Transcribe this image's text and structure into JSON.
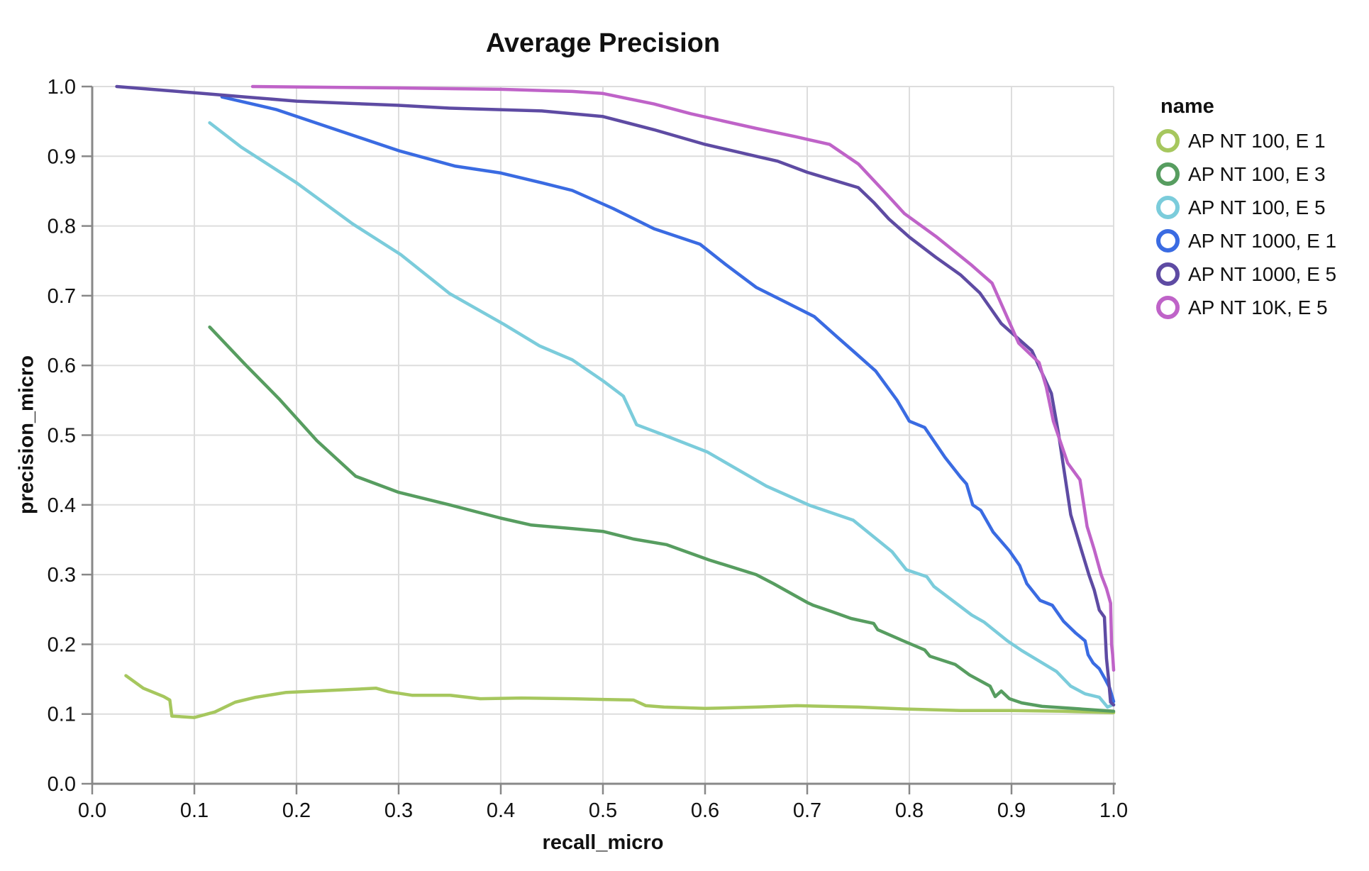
{
  "page": {
    "background": "#ffffff"
  },
  "chart_data": {
    "type": "line",
    "title": "Average Precision",
    "xlabel": "recall_micro",
    "ylabel": "precision_micro",
    "legend_title": "name",
    "legend_position": "right",
    "grid": true,
    "xlim": [
      0,
      1
    ],
    "ylim": [
      0,
      1
    ],
    "x_ticks": [
      "0.0",
      "0.1",
      "0.2",
      "0.3",
      "0.4",
      "0.5",
      "0.6",
      "0.7",
      "0.8",
      "0.9",
      "1.0"
    ],
    "y_ticks": [
      "0.0",
      "0.1",
      "0.2",
      "0.3",
      "0.4",
      "0.5",
      "0.6",
      "0.7",
      "0.8",
      "0.9",
      "1.0"
    ],
    "colors": {
      "grid": "#dddddd",
      "domain": "#888888",
      "text": "#111111"
    },
    "series": [
      {
        "name": "AP NT 100, E 1",
        "color": "#a6c75e",
        "points": [
          [
            0.033,
            0.155
          ],
          [
            0.05,
            0.137
          ],
          [
            0.07,
            0.125
          ],
          [
            0.076,
            0.12
          ],
          [
            0.078,
            0.097
          ],
          [
            0.1,
            0.095
          ],
          [
            0.12,
            0.103
          ],
          [
            0.14,
            0.117
          ],
          [
            0.16,
            0.124
          ],
          [
            0.19,
            0.131
          ],
          [
            0.22,
            0.133
          ],
          [
            0.25,
            0.135
          ],
          [
            0.278,
            0.137
          ],
          [
            0.29,
            0.132
          ],
          [
            0.313,
            0.127
          ],
          [
            0.35,
            0.127
          ],
          [
            0.38,
            0.122
          ],
          [
            0.42,
            0.123
          ],
          [
            0.47,
            0.122
          ],
          [
            0.5,
            0.121
          ],
          [
            0.53,
            0.12
          ],
          [
            0.542,
            0.112
          ],
          [
            0.56,
            0.11
          ],
          [
            0.6,
            0.108
          ],
          [
            0.65,
            0.11
          ],
          [
            0.69,
            0.112
          ],
          [
            0.75,
            0.11
          ],
          [
            0.8,
            0.107
          ],
          [
            0.85,
            0.105
          ],
          [
            0.9,
            0.105
          ],
          [
            0.95,
            0.104
          ],
          [
            1.0,
            0.102
          ]
        ]
      },
      {
        "name": "AP NT 100, E 3",
        "color": "#579d60",
        "points": [
          [
            0.115,
            0.655
          ],
          [
            0.15,
            0.601
          ],
          [
            0.183,
            0.552
          ],
          [
            0.22,
            0.492
          ],
          [
            0.258,
            0.441
          ],
          [
            0.3,
            0.418
          ],
          [
            0.35,
            0.4
          ],
          [
            0.4,
            0.381
          ],
          [
            0.43,
            0.371
          ],
          [
            0.47,
            0.366
          ],
          [
            0.5,
            0.362
          ],
          [
            0.53,
            0.351
          ],
          [
            0.562,
            0.343
          ],
          [
            0.604,
            0.321
          ],
          [
            0.65,
            0.3
          ],
          [
            0.667,
            0.287
          ],
          [
            0.7,
            0.26
          ],
          [
            0.706,
            0.256
          ],
          [
            0.724,
            0.247
          ],
          [
            0.743,
            0.237
          ],
          [
            0.765,
            0.23
          ],
          [
            0.769,
            0.221
          ],
          [
            0.794,
            0.205
          ],
          [
            0.815,
            0.192
          ],
          [
            0.82,
            0.183
          ],
          [
            0.845,
            0.171
          ],
          [
            0.859,
            0.156
          ],
          [
            0.879,
            0.14
          ],
          [
            0.884,
            0.125
          ],
          [
            0.89,
            0.133
          ],
          [
            0.898,
            0.122
          ],
          [
            0.91,
            0.116
          ],
          [
            0.93,
            0.111
          ],
          [
            0.96,
            0.108
          ],
          [
            1.0,
            0.104
          ]
        ]
      },
      {
        "name": "AP NT 100, E 5",
        "color": "#7bccdb",
        "points": [
          [
            0.115,
            0.948
          ],
          [
            0.146,
            0.913
          ],
          [
            0.2,
            0.862
          ],
          [
            0.255,
            0.803
          ],
          [
            0.302,
            0.759
          ],
          [
            0.35,
            0.703
          ],
          [
            0.403,
            0.659
          ],
          [
            0.438,
            0.628
          ],
          [
            0.47,
            0.608
          ],
          [
            0.5,
            0.578
          ],
          [
            0.52,
            0.556
          ],
          [
            0.533,
            0.515
          ],
          [
            0.56,
            0.5
          ],
          [
            0.602,
            0.476
          ],
          [
            0.66,
            0.427
          ],
          [
            0.703,
            0.399
          ],
          [
            0.745,
            0.378
          ],
          [
            0.783,
            0.333
          ],
          [
            0.797,
            0.307
          ],
          [
            0.817,
            0.297
          ],
          [
            0.824,
            0.283
          ],
          [
            0.861,
            0.242
          ],
          [
            0.873,
            0.232
          ],
          [
            0.896,
            0.205
          ],
          [
            0.91,
            0.191
          ],
          [
            0.944,
            0.161
          ],
          [
            0.958,
            0.14
          ],
          [
            0.972,
            0.129
          ],
          [
            0.986,
            0.124
          ],
          [
            0.994,
            0.11
          ],
          [
            1.0,
            0.114
          ]
        ]
      },
      {
        "name": "AP NT 1000, E 1",
        "color": "#3a6be2",
        "points": [
          [
            0.127,
            0.985
          ],
          [
            0.18,
            0.967
          ],
          [
            0.235,
            0.94
          ],
          [
            0.3,
            0.908
          ],
          [
            0.355,
            0.886
          ],
          [
            0.4,
            0.876
          ],
          [
            0.44,
            0.862
          ],
          [
            0.47,
            0.851
          ],
          [
            0.51,
            0.825
          ],
          [
            0.55,
            0.796
          ],
          [
            0.595,
            0.774
          ],
          [
            0.62,
            0.745
          ],
          [
            0.65,
            0.712
          ],
          [
            0.68,
            0.69
          ],
          [
            0.707,
            0.67
          ],
          [
            0.73,
            0.64
          ],
          [
            0.747,
            0.618
          ],
          [
            0.767,
            0.592
          ],
          [
            0.788,
            0.55
          ],
          [
            0.8,
            0.52
          ],
          [
            0.815,
            0.511
          ],
          [
            0.835,
            0.468
          ],
          [
            0.85,
            0.44
          ],
          [
            0.856,
            0.43
          ],
          [
            0.862,
            0.4
          ],
          [
            0.87,
            0.392
          ],
          [
            0.882,
            0.361
          ],
          [
            0.898,
            0.334
          ],
          [
            0.908,
            0.313
          ],
          [
            0.915,
            0.287
          ],
          [
            0.928,
            0.263
          ],
          [
            0.94,
            0.256
          ],
          [
            0.951,
            0.233
          ],
          [
            0.963,
            0.216
          ],
          [
            0.972,
            0.205
          ],
          [
            0.975,
            0.185
          ],
          [
            0.98,
            0.173
          ],
          [
            0.986,
            0.165
          ],
          [
            0.991,
            0.152
          ],
          [
            0.996,
            0.138
          ],
          [
            1.0,
            0.118
          ]
        ]
      },
      {
        "name": "AP NT 1000, E 5",
        "color": "#5e4ba3",
        "points": [
          [
            0.024,
            1.0
          ],
          [
            0.1,
            0.991
          ],
          [
            0.15,
            0.985
          ],
          [
            0.2,
            0.979
          ],
          [
            0.25,
            0.976
          ],
          [
            0.3,
            0.973
          ],
          [
            0.35,
            0.969
          ],
          [
            0.44,
            0.965
          ],
          [
            0.5,
            0.957
          ],
          [
            0.55,
            0.938
          ],
          [
            0.6,
            0.917
          ],
          [
            0.65,
            0.9
          ],
          [
            0.671,
            0.893
          ],
          [
            0.7,
            0.877
          ],
          [
            0.75,
            0.855
          ],
          [
            0.765,
            0.834
          ],
          [
            0.78,
            0.81
          ],
          [
            0.8,
            0.784
          ],
          [
            0.826,
            0.755
          ],
          [
            0.85,
            0.73
          ],
          [
            0.869,
            0.704
          ],
          [
            0.89,
            0.66
          ],
          [
            0.92,
            0.621
          ],
          [
            0.939,
            0.56
          ],
          [
            0.946,
            0.503
          ],
          [
            0.958,
            0.386
          ],
          [
            0.967,
            0.342
          ],
          [
            0.976,
            0.299
          ],
          [
            0.981,
            0.278
          ],
          [
            0.986,
            0.249
          ],
          [
            0.991,
            0.239
          ],
          [
            0.993,
            0.18
          ],
          [
            0.995,
            0.151
          ],
          [
            0.997,
            0.117
          ],
          [
            1.0,
            0.113
          ]
        ]
      },
      {
        "name": "AP NT 10K, E 5",
        "color": "#bf63c8",
        "points": [
          [
            0.157,
            1.0
          ],
          [
            0.3,
            0.998
          ],
          [
            0.4,
            0.996
          ],
          [
            0.47,
            0.993
          ],
          [
            0.5,
            0.99
          ],
          [
            0.55,
            0.975
          ],
          [
            0.586,
            0.961
          ],
          [
            0.65,
            0.94
          ],
          [
            0.689,
            0.928
          ],
          [
            0.722,
            0.917
          ],
          [
            0.75,
            0.889
          ],
          [
            0.775,
            0.85
          ],
          [
            0.795,
            0.818
          ],
          [
            0.826,
            0.785
          ],
          [
            0.86,
            0.745
          ],
          [
            0.881,
            0.718
          ],
          [
            0.907,
            0.632
          ],
          [
            0.927,
            0.604
          ],
          [
            0.934,
            0.569
          ],
          [
            0.941,
            0.52
          ],
          [
            0.955,
            0.46
          ],
          [
            0.967,
            0.436
          ],
          [
            0.974,
            0.369
          ],
          [
            0.981,
            0.336
          ],
          [
            0.988,
            0.299
          ],
          [
            0.993,
            0.28
          ],
          [
            0.997,
            0.259
          ],
          [
            0.998,
            0.2
          ],
          [
            0.999,
            0.185
          ],
          [
            1.0,
            0.163
          ]
        ]
      }
    ]
  }
}
